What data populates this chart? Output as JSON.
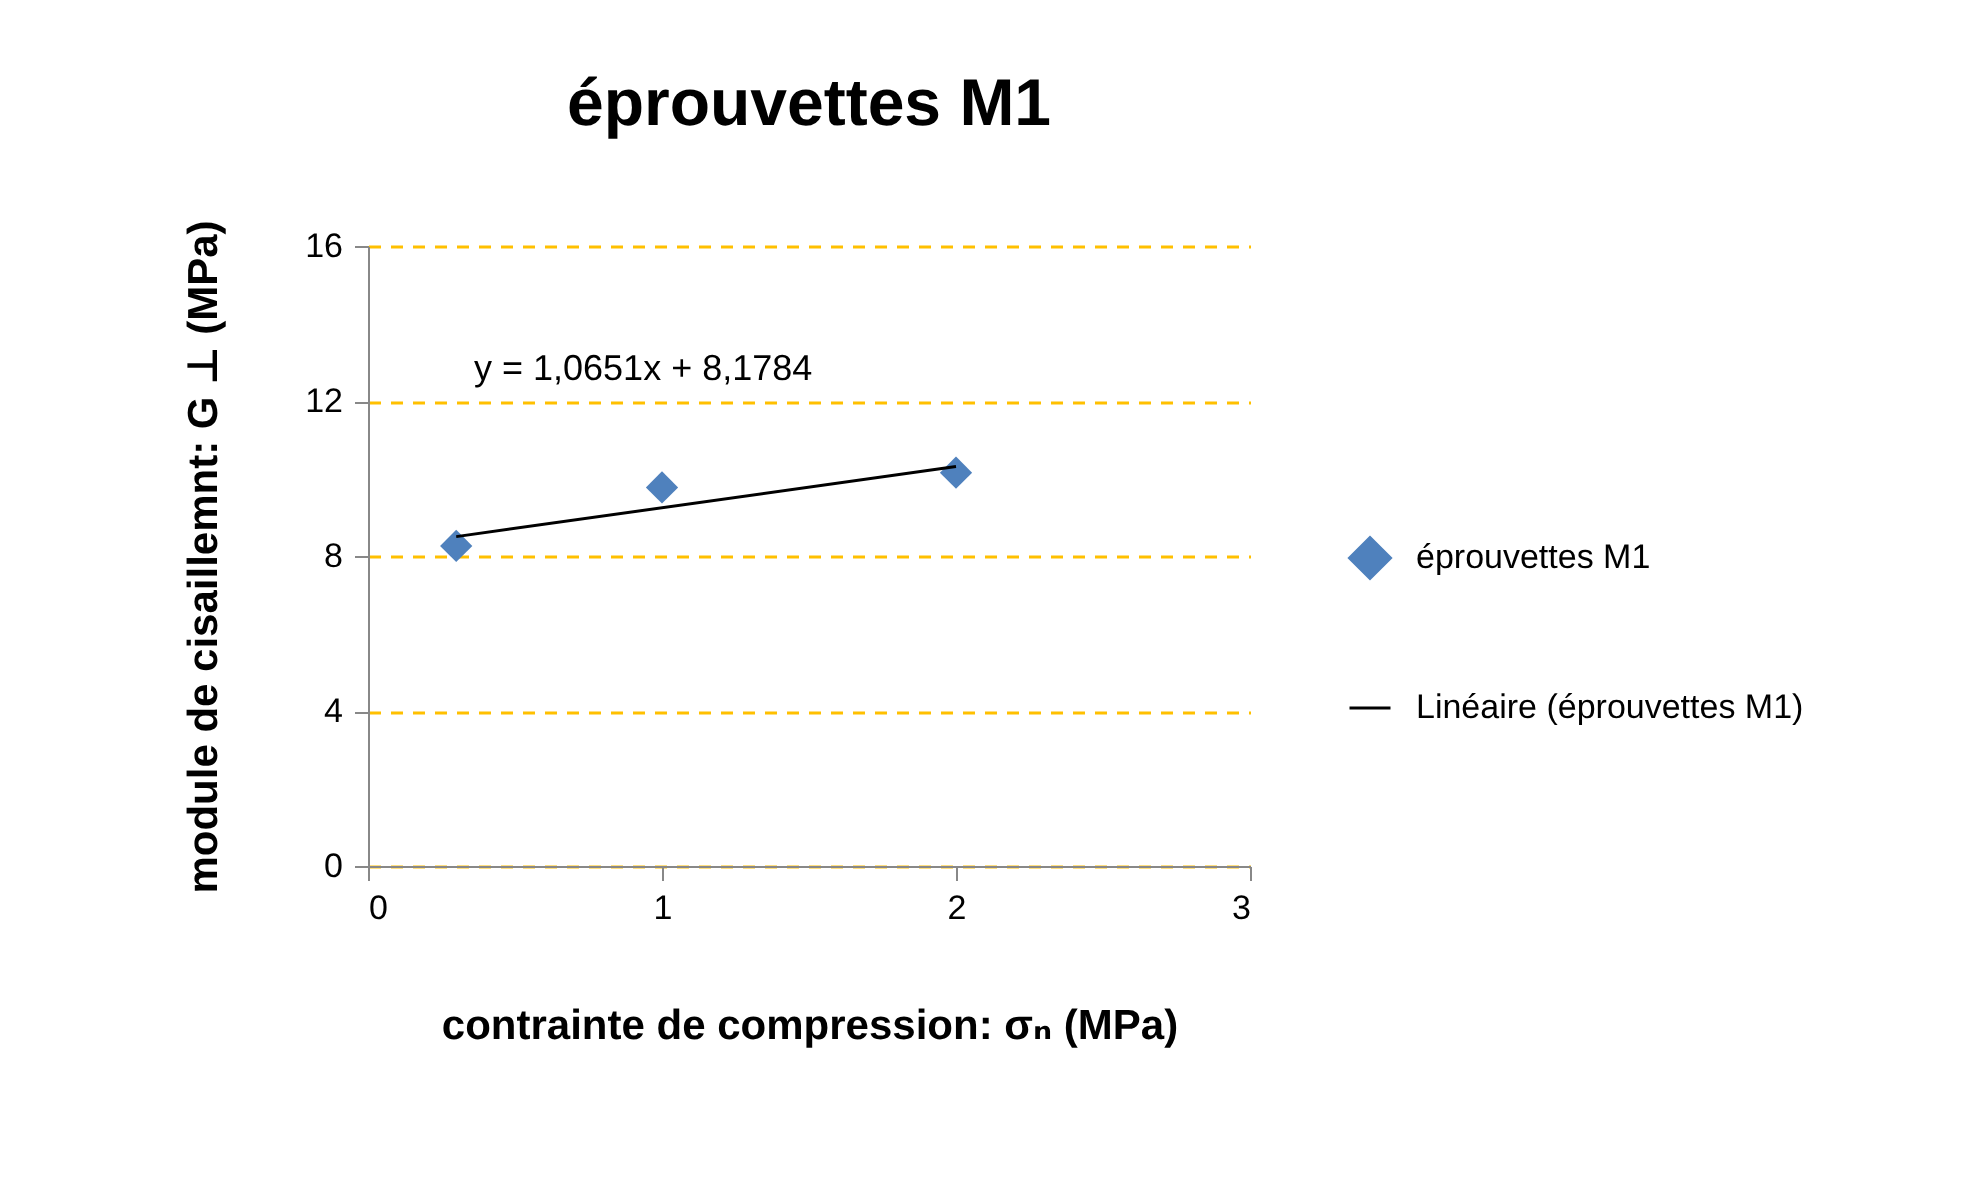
{
  "chart_data": {
    "type": "scatter",
    "title": "éprouvettes M1",
    "xlabel": "contrainte de compression: σₙ  (MPa)",
    "ylabel": "module de cisaillemnt: G ⊥ (MPa)",
    "annotations": [
      "y = 1,0651x + 8,1784"
    ],
    "series": [
      {
        "name": "éprouvettes M1",
        "color": "#4f81bd",
        "marker": "diamond",
        "x": [
          0.3,
          1,
          2
        ],
        "values": [
          8.26,
          9.77,
          10.15
        ]
      },
      {
        "name": "Linéaire (éprouvettes M1)",
        "type": "line",
        "color": "#000000",
        "marker": "none",
        "line_style": "solid",
        "x": [
          0.3,
          2
        ],
        "values": [
          8.5,
          10.31
        ]
      }
    ],
    "xlim": [
      0,
      3
    ],
    "xticks": [
      0,
      1,
      2,
      3
    ],
    "ylim": [
      0,
      16
    ],
    "yticks": [
      0,
      4,
      8,
      12,
      16
    ],
    "grid": "y",
    "legend": "right"
  }
}
